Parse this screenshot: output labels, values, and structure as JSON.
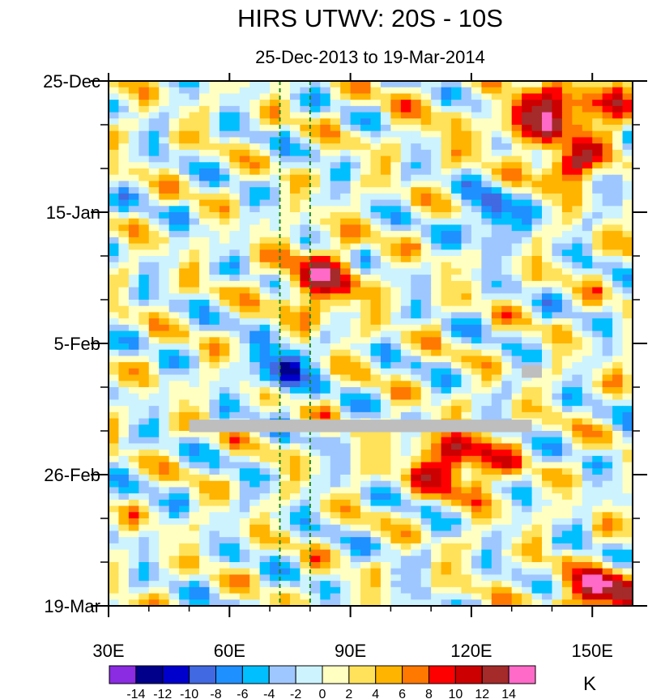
{
  "chart_data": {
    "type": "heatmap",
    "title": "HIRS UTWV: 20S - 10S",
    "subtitle": "25-Dec-2013 to 19-Mar-2014",
    "xlabel": "",
    "ylabel": "",
    "x_axis": {
      "range": [
        30,
        160
      ],
      "ticks": [
        30,
        60,
        90,
        120,
        150
      ],
      "tick_labels": [
        "30E",
        "60E",
        "90E",
        "120E",
        "150E"
      ],
      "minor_ticks": [
        40,
        50,
        70,
        80,
        100,
        110,
        130,
        140
      ]
    },
    "y_axis": {
      "range_days": [
        0,
        84
      ],
      "ticks": [
        0,
        21,
        42,
        63,
        84
      ],
      "tick_labels": [
        "25-Dec",
        "15-Jan",
        "5-Feb",
        "26-Feb",
        "19-Mar"
      ],
      "minor_ticks": [
        7,
        14,
        28,
        35,
        49,
        56,
        70,
        77
      ],
      "direction": "time increases downward"
    },
    "reference_lines_lon": [
      72.5,
      80
    ],
    "missing_data_regions": [
      {
        "lon": [
          50,
          135
        ],
        "day": [
          54.2,
          56.2
        ]
      },
      {
        "lon": [
          132.5,
          137.5
        ],
        "day": [
          45.5,
          47.5
        ]
      }
    ],
    "colorbar": {
      "units": "K",
      "levels": [
        -14,
        -12,
        -10,
        -8,
        -6,
        -4,
        -2,
        0,
        2,
        4,
        6,
        8,
        10,
        12,
        14
      ],
      "level_labels": [
        "-14",
        "-12",
        "-10",
        "-8",
        "-6",
        "-4",
        "-2",
        "0",
        "2",
        "4",
        "6",
        "8",
        "10",
        "12",
        "14"
      ],
      "colors": [
        "#8b2be2",
        "#00008b",
        "#0000cd",
        "#4169e1",
        "#1e90ff",
        "#00bfff",
        "#9fc7ff",
        "#cdf3ff",
        "#ffffc2",
        "#ffe25a",
        "#ffb400",
        "#ff7800",
        "#ff0000",
        "#cc0000",
        "#a52a2a",
        "#ff6ac8"
      ]
    },
    "anomaly_features": [
      {
        "lon": [
          115,
          160
        ],
        "day": [
          2,
          8
        ],
        "value": 12
      },
      {
        "lon": [
          140,
          148
        ],
        "day": [
          13,
          14.5
        ],
        "value": 14
      },
      {
        "lon": [
          75,
          90
        ],
        "day": [
          28,
          36
        ],
        "value": 10
      },
      {
        "lon": [
          108,
          125
        ],
        "day": [
          58,
          64
        ],
        "value": 12
      },
      {
        "lon": [
          145,
          160
        ],
        "day": [
          80,
          84
        ],
        "value": 14
      },
      {
        "lon": [
          118,
          128
        ],
        "day": [
          2,
          6
        ],
        "value": -10
      },
      {
        "lon": [
          70,
          76
        ],
        "day": [
          44,
          48
        ],
        "value": -12
      },
      {
        "lon": [
          122,
          128
        ],
        "day": [
          20,
          24
        ],
        "value": -10
      }
    ]
  }
}
